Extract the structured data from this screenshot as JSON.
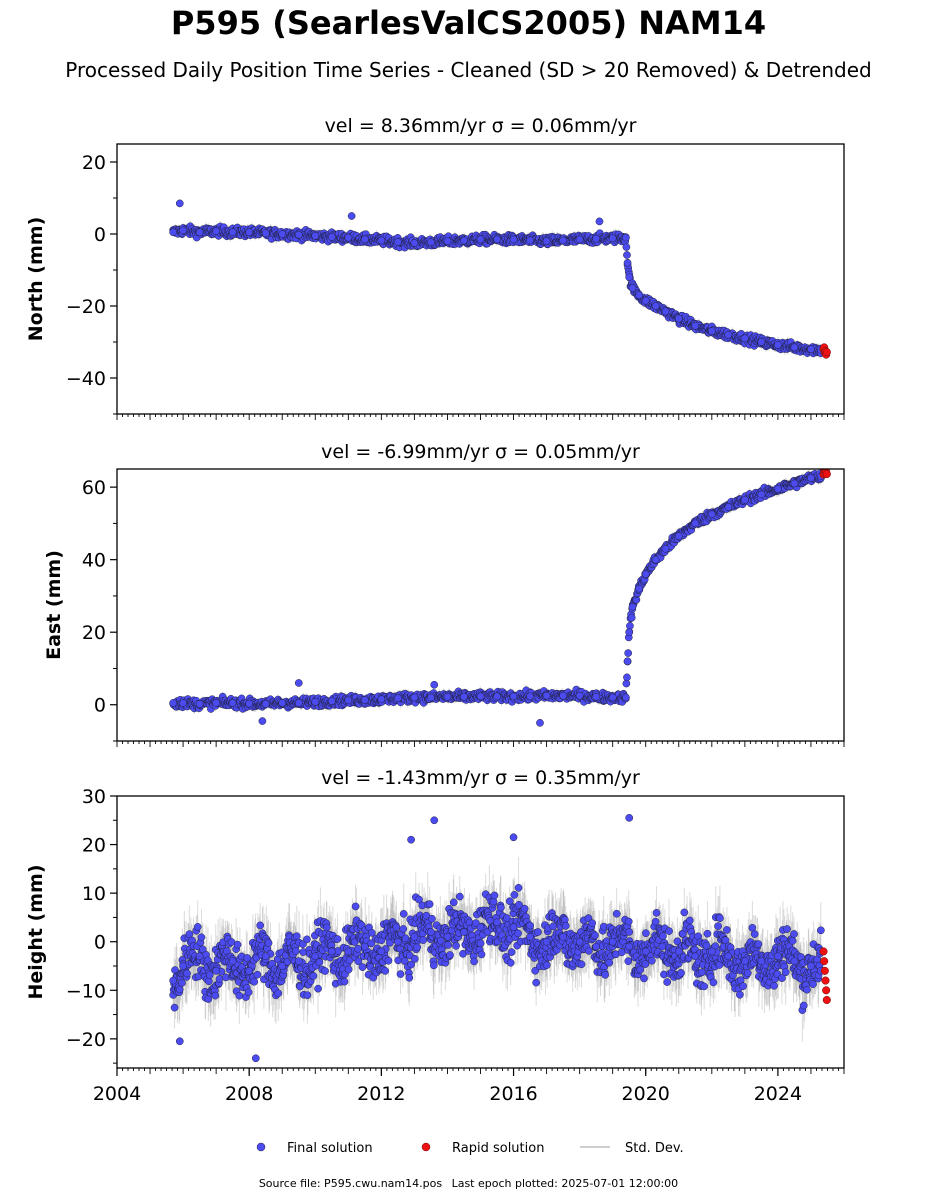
{
  "header": {
    "title": "P595 (SearlesValCS2005) NAM14",
    "subtitle": "Processed Daily Position Time Series - Cleaned (SD > 20 Removed) & Detrended"
  },
  "footer": {
    "source_label": "Source file: P595.cwu.nam14.pos",
    "last_epoch_label": "Last epoch plotted: 2025-07-01 12:00:00"
  },
  "legend": {
    "final": "Final solution",
    "rapid": "Rapid solution",
    "std": "Std. Dev."
  },
  "colors": {
    "final": "#4b4bf0",
    "rapid": "#ee1111",
    "std": "#bdbdbd",
    "edge": "#222244"
  },
  "chart_data": [
    {
      "type": "scatter",
      "title": "vel = 8.36mm/yr   σ = 0.06mm/yr",
      "xlabel": "",
      "ylabel": "North (mm)",
      "xlim": [
        2004.0,
        2026.0
      ],
      "ylim": [
        -50,
        25
      ],
      "yticks": [
        -40,
        -20,
        0,
        20
      ],
      "grid": false,
      "legend": "bottom-center",
      "series": [
        {
          "name": "Final solution",
          "x": [
            2005.7,
            2006.0,
            2006.5,
            2007.0,
            2007.5,
            2008.0,
            2008.5,
            2009.0,
            2009.5,
            2010.0,
            2010.5,
            2011.0,
            2011.5,
            2012.0,
            2012.5,
            2013.0,
            2013.5,
            2014.0,
            2014.5,
            2015.0,
            2015.5,
            2016.0,
            2016.5,
            2017.0,
            2017.5,
            2018.0,
            2018.5,
            2019.0,
            2019.4,
            2019.45,
            2019.5,
            2019.6,
            2019.8,
            2020.0,
            2020.3,
            2020.6,
            2021.0,
            2021.5,
            2022.0,
            2022.5,
            2023.0,
            2023.5,
            2024.0,
            2024.5,
            2025.0,
            2025.3
          ],
          "y": [
            0.5,
            1.0,
            0.5,
            0.8,
            0.5,
            0.5,
            0.2,
            0.0,
            -0.2,
            -0.5,
            -0.8,
            -1.0,
            -1.5,
            -1.8,
            -2.2,
            -2.5,
            -2.3,
            -2.0,
            -1.8,
            -1.5,
            -1.5,
            -1.5,
            -1.8,
            -2.0,
            -1.8,
            -1.5,
            -1.3,
            -1.2,
            -1.0,
            -8.0,
            -12.0,
            -15.0,
            -17.0,
            -18.5,
            -20.0,
            -21.5,
            -23.5,
            -25.5,
            -27.0,
            -28.0,
            -29.0,
            -30.0,
            -30.8,
            -31.5,
            -32.0,
            -32.2
          ]
        },
        {
          "name": "Rapid solution",
          "x": [
            2025.38,
            2025.4,
            2025.42,
            2025.44,
            2025.46,
            2025.48
          ],
          "y": [
            -32.0,
            -31.5,
            -33.0,
            -32.5,
            -33.5,
            -32.8
          ]
        }
      ],
      "outliers": {
        "x": [
          2005.9,
          2011.1,
          2018.6
        ],
        "y": [
          8.5,
          5.0,
          3.5
        ]
      }
    },
    {
      "type": "scatter",
      "title": "vel = -6.99mm/yr   σ = 0.05mm/yr",
      "xlabel": "",
      "ylabel": "East (mm)",
      "xlim": [
        2004.0,
        2026.0
      ],
      "ylim": [
        -10,
        65
      ],
      "yticks": [
        0,
        20,
        40,
        60
      ],
      "grid": false,
      "series": [
        {
          "name": "Final solution",
          "x": [
            2005.7,
            2006.0,
            2006.5,
            2007.0,
            2007.5,
            2008.0,
            2008.5,
            2009.0,
            2009.5,
            2010.0,
            2010.5,
            2011.0,
            2011.5,
            2012.0,
            2012.5,
            2013.0,
            2013.5,
            2014.0,
            2014.5,
            2015.0,
            2015.5,
            2016.0,
            2016.5,
            2017.0,
            2017.5,
            2018.0,
            2018.5,
            2019.0,
            2019.4,
            2019.45,
            2019.5,
            2019.6,
            2019.8,
            2020.0,
            2020.3,
            2020.6,
            2021.0,
            2021.5,
            2022.0,
            2022.5,
            2023.0,
            2023.5,
            2024.0,
            2024.5,
            2025.0,
            2025.3
          ],
          "y": [
            0.5,
            0.5,
            0.2,
            0.5,
            0.5,
            0.3,
            0.2,
            0.5,
            0.5,
            0.8,
            1.0,
            1.2,
            1.3,
            1.5,
            1.8,
            2.0,
            2.0,
            2.2,
            2.2,
            2.3,
            2.3,
            2.3,
            2.3,
            2.5,
            2.5,
            2.5,
            2.2,
            2.0,
            2.0,
            12.0,
            20.0,
            27.0,
            32.0,
            36.0,
            40.0,
            43.0,
            46.5,
            50.0,
            52.5,
            54.5,
            56.5,
            58.0,
            59.5,
            61.0,
            62.5,
            63.0
          ]
        },
        {
          "name": "Rapid solution",
          "x": [
            2025.38,
            2025.4,
            2025.42,
            2025.44,
            2025.46,
            2025.48
          ],
          "y": [
            63.5,
            64.5,
            63.8,
            65.0,
            64.2,
            63.6
          ]
        }
      ],
      "outliers": {
        "x": [
          2009.5,
          2013.6,
          2016.8,
          2008.4
        ],
        "y": [
          6.0,
          5.5,
          -5.0,
          -4.5
        ]
      }
    },
    {
      "type": "scatter",
      "title": "vel = -1.43mm/yr   σ = 0.35mm/yr",
      "xlabel": "",
      "ylabel": "Height (mm)",
      "xlim": [
        2004.0,
        2026.0
      ],
      "ylim": [
        -26,
        30
      ],
      "yticks": [
        -20,
        -10,
        0,
        10,
        20,
        30
      ],
      "xticks": [
        2004,
        2008,
        2012,
        2016,
        2020,
        2024
      ],
      "grid": false,
      "series": [
        {
          "name": "Final solution",
          "x": [
            2005.7,
            2006.0,
            2006.5,
            2007.0,
            2007.5,
            2008.0,
            2008.5,
            2009.0,
            2009.5,
            2010.0,
            2010.5,
            2011.0,
            2011.5,
            2012.0,
            2012.5,
            2013.0,
            2013.5,
            2014.0,
            2014.5,
            2015.0,
            2015.5,
            2016.0,
            2016.5,
            2017.0,
            2017.5,
            2018.0,
            2018.5,
            2019.0,
            2019.5,
            2020.0,
            2020.5,
            2021.0,
            2021.5,
            2022.0,
            2022.5,
            2023.0,
            2023.5,
            2024.0,
            2024.5,
            2025.0,
            2025.3
          ],
          "y": [
            -8,
            -5,
            -3,
            -6,
            -4,
            -6,
            -3,
            -5,
            -4,
            -3,
            -2,
            -2,
            -1,
            -2,
            0,
            1,
            2,
            1,
            2,
            3,
            4,
            3,
            1,
            0,
            1,
            0,
            -1,
            0,
            -1,
            -2,
            -1,
            -2,
            -3,
            -2,
            -3,
            -4,
            -4,
            -3,
            -4,
            -5,
            -6
          ]
        },
        {
          "name": "Rapid solution",
          "x": [
            2025.38,
            2025.4,
            2025.42,
            2025.44,
            2025.46,
            2025.48
          ],
          "y": [
            -2.0,
            -4.0,
            -6.0,
            -8.0,
            -10.0,
            -12.0
          ]
        }
      ],
      "outliers": {
        "x": [
          2013.6,
          2019.5,
          2008.2,
          2005.9,
          2012.9,
          2016.0
        ],
        "y": [
          25.0,
          25.5,
          -24.0,
          -20.5,
          21.0,
          21.5
        ]
      }
    }
  ]
}
